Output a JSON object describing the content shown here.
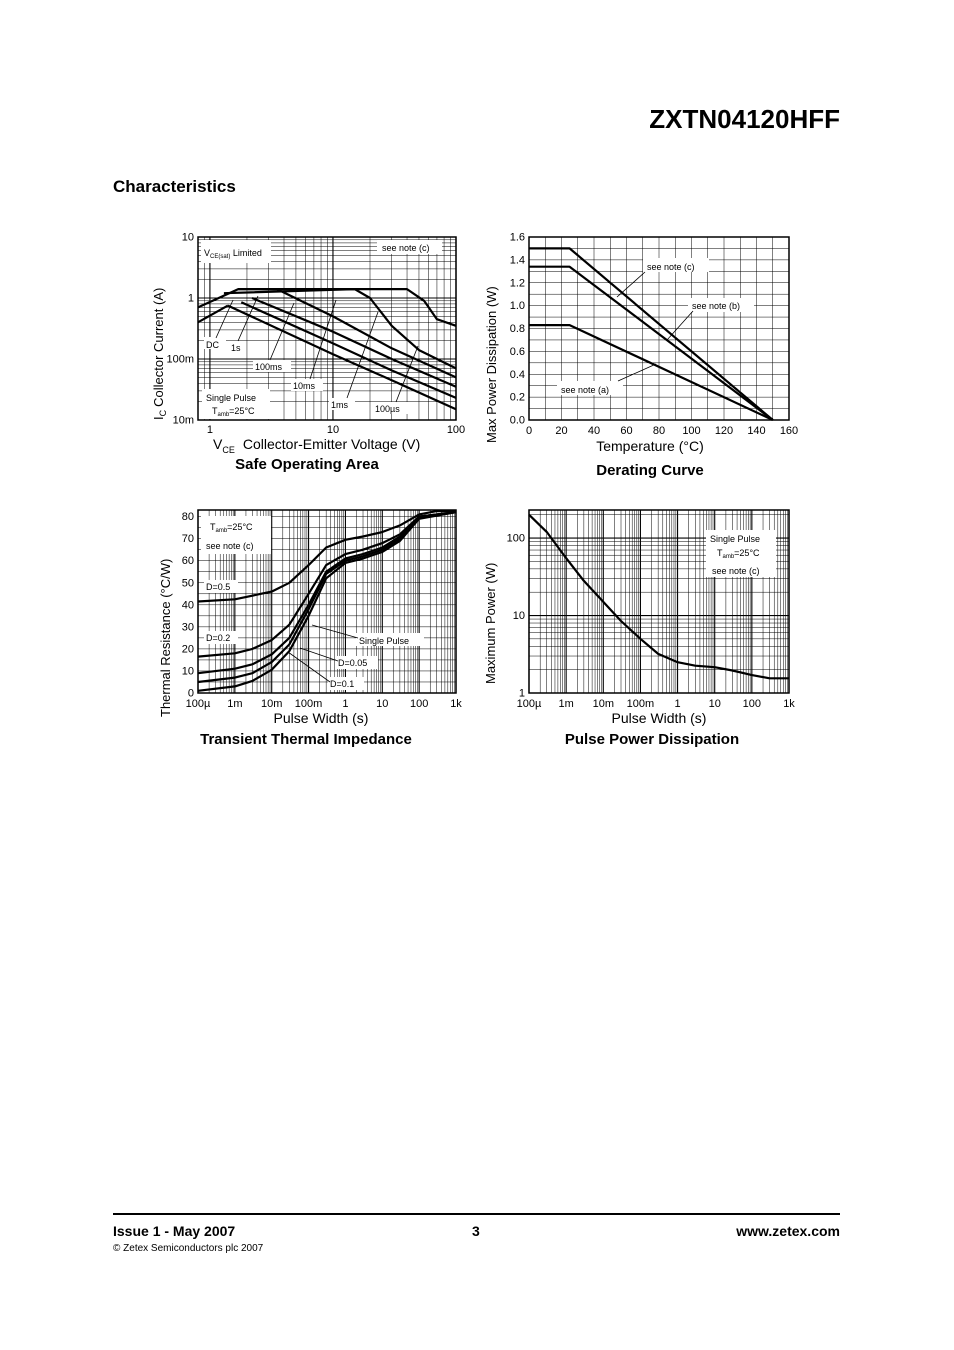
{
  "header": {
    "part_number": "ZXTN04120HFF",
    "section_title": "Characteristics"
  },
  "footer": {
    "issue": "Issue 1 - May 2007",
    "page": "3",
    "website": "www.zetex.com",
    "copyright": "© Zetex Semiconductors plc 2007"
  },
  "chart_data": [
    {
      "id": "soa",
      "type": "line",
      "caption": "Safe Operating Area",
      "x_scale": "log",
      "y_scale": "log",
      "xlim": [
        0.8,
        100
      ],
      "ylim": [
        0.01,
        10
      ],
      "xlabel_main": "V",
      "xlabel_sub": "CE",
      "xlabel_rest": "Collector-Emitter Voltage (V)",
      "ylabel_main": "I",
      "ylabel_sub": "C",
      "ylabel_rest": "Collector Current (A)",
      "x_ticks": [
        {
          "v": 1,
          "label": "1"
        },
        {
          "v": 10,
          "label": "10"
        },
        {
          "v": 100,
          "label": "100"
        }
      ],
      "y_ticks": [
        {
          "v": 10,
          "label": "10"
        },
        {
          "v": 1,
          "label": "1"
        },
        {
          "v": 0.1,
          "label": "100m"
        },
        {
          "v": 0.01,
          "label": "10m"
        }
      ],
      "series": [
        {
          "points": [
            [
              0.8,
              0.7
            ],
            [
              1.7,
              1.4
            ],
            [
              3.5,
              1.4
            ],
            [
              6,
              1.4
            ],
            [
              25,
              1.4
            ],
            [
              40,
              1.4
            ],
            [
              55,
              0.9
            ],
            [
              70,
              0.45
            ],
            [
              100,
              0.35
            ]
          ]
        },
        {
          "points": [
            [
              1.3,
              1.2
            ],
            [
              15,
              1.4
            ],
            [
              20,
              1.0
            ],
            [
              30,
              0.35
            ],
            [
              50,
              0.14
            ],
            [
              100,
              0.07
            ]
          ]
        },
        {
          "points": [
            [
              1.7,
              1.4
            ],
            [
              3.5,
              1.4
            ],
            [
              10,
              0.5
            ],
            [
              30,
              0.15
            ],
            [
              100,
              0.05
            ]
          ]
        },
        {
          "points": [
            [
              2.2,
              1.0
            ],
            [
              10,
              0.28
            ],
            [
              30,
              0.1
            ],
            [
              100,
              0.035
            ]
          ]
        },
        {
          "points": [
            [
              1.8,
              0.85
            ],
            [
              10,
              0.18
            ],
            [
              30,
              0.065
            ],
            [
              100,
              0.023
            ]
          ]
        },
        {
          "points": [
            [
              1.4,
              0.75
            ],
            [
              10,
              0.12
            ],
            [
              30,
              0.045
            ],
            [
              100,
              0.015
            ]
          ]
        },
        {
          "points": [
            [
              0.8,
              0.4
            ],
            [
              1.4,
              0.75
            ]
          ]
        }
      ],
      "labels": {
        "vce_sat_main": "V",
        "vce_sat_sub": "CE(sat)",
        "vce_sat_rest": " Limited",
        "note": "see note (c)",
        "dc": "DC",
        "s1": "1s",
        "ms100": "100ms",
        "ms10": "10ms",
        "ms1": "1ms",
        "us100": "100µs",
        "single_pulse": "Single Pulse",
        "tamb_main": "T",
        "tamb_sub": "amb",
        "tamb_rest": "=25°C"
      }
    },
    {
      "id": "derating",
      "type": "line",
      "caption": "Derating Curve",
      "xlim": [
        0,
        160
      ],
      "ylim": [
        0,
        1.6
      ],
      "xlabel": "Temperature (°C)",
      "ylabel": "Max Power Dissipation (W)",
      "x_ticks": [
        0,
        20,
        40,
        60,
        80,
        100,
        120,
        140,
        160
      ],
      "y_ticks": [
        {
          "v": 0,
          "label": "0.0"
        },
        {
          "v": 0.2,
          "label": "0.2"
        },
        {
          "v": 0.4,
          "label": "0.4"
        },
        {
          "v": 0.6,
          "label": "0.6"
        },
        {
          "v": 0.8,
          "label": "0.8"
        },
        {
          "v": 1.0,
          "label": "1.0"
        },
        {
          "v": 1.2,
          "label": "1.2"
        },
        {
          "v": 1.4,
          "label": "1.4"
        },
        {
          "v": 1.6,
          "label": "1.6"
        }
      ],
      "series": [
        {
          "name": "see note (c)",
          "points": [
            [
              0,
              1.5
            ],
            [
              25,
              1.5
            ],
            [
              150,
              0
            ]
          ]
        },
        {
          "name": "see note (b)",
          "points": [
            [
              0,
              1.34
            ],
            [
              25,
              1.34
            ],
            [
              150,
              0
            ]
          ]
        },
        {
          "name": "see note (a)",
          "points": [
            [
              0,
              0.83
            ],
            [
              25,
              0.83
            ],
            [
              150,
              0
            ]
          ]
        }
      ]
    },
    {
      "id": "thermal",
      "type": "line",
      "caption": "Transient Thermal Impedance",
      "x_scale": "log",
      "xlim": [
        0.0001,
        1000
      ],
      "ylim": [
        0,
        83
      ],
      "xlabel": "Pulse Width (s)",
      "ylabel": "Thermal Resistance (°C/W)",
      "x_ticks": [
        {
          "v": 0.0001,
          "label": "100µ"
        },
        {
          "v": 0.001,
          "label": "1m"
        },
        {
          "v": 0.01,
          "label": "10m"
        },
        {
          "v": 0.1,
          "label": "100m"
        },
        {
          "v": 1,
          "label": "1"
        },
        {
          "v": 10,
          "label": "10"
        },
        {
          "v": 100,
          "label": "100"
        },
        {
          "v": 1000,
          "label": "1k"
        }
      ],
      "y_ticks": [
        0,
        10,
        20,
        30,
        40,
        50,
        60,
        70,
        80
      ],
      "series": [
        {
          "name": "D=0.5",
          "points": [
            [
              0.0001,
              41.5
            ],
            [
              0.001,
              42.5
            ],
            [
              0.01,
              46
            ],
            [
              0.03,
              50
            ],
            [
              0.1,
              58
            ],
            [
              0.3,
              66
            ],
            [
              1,
              69.5
            ],
            [
              3,
              71
            ],
            [
              10,
              73
            ],
            [
              30,
              76
            ],
            [
              100,
              81
            ],
            [
              300,
              82.5
            ],
            [
              1000,
              82.5
            ]
          ]
        },
        {
          "name": "D=0.2",
          "points": [
            [
              0.0001,
              16.5
            ],
            [
              0.001,
              18
            ],
            [
              0.003,
              20
            ],
            [
              0.01,
              24
            ],
            [
              0.03,
              31
            ],
            [
              0.1,
              45
            ],
            [
              0.3,
              58
            ],
            [
              1,
              63
            ],
            [
              3,
              65
            ],
            [
              10,
              68
            ],
            [
              30,
              72
            ],
            [
              100,
              80
            ],
            [
              1000,
              82
            ]
          ]
        },
        {
          "name": "D=0.1",
          "points": [
            [
              0.0001,
              9
            ],
            [
              0.001,
              11
            ],
            [
              0.003,
              13
            ],
            [
              0.01,
              17.5
            ],
            [
              0.03,
              25
            ],
            [
              0.1,
              40
            ],
            [
              0.3,
              55
            ],
            [
              1,
              61
            ],
            [
              3,
              63
            ],
            [
              10,
              66
            ],
            [
              30,
              71
            ],
            [
              100,
              80
            ],
            [
              1000,
              82
            ]
          ]
        },
        {
          "name": "D=0.05",
          "points": [
            [
              0.0001,
              5
            ],
            [
              0.001,
              7
            ],
            [
              0.003,
              9
            ],
            [
              0.01,
              14
            ],
            [
              0.03,
              22
            ],
            [
              0.1,
              38
            ],
            [
              0.3,
              54
            ],
            [
              1,
              60
            ],
            [
              3,
              62
            ],
            [
              10,
              65
            ],
            [
              30,
              70
            ],
            [
              100,
              80
            ],
            [
              1000,
              82
            ]
          ]
        },
        {
          "name": "Single Pulse",
          "points": [
            [
              0.0001,
              1
            ],
            [
              0.001,
              3
            ],
            [
              0.003,
              5.5
            ],
            [
              0.01,
              10.5
            ],
            [
              0.03,
              19
            ],
            [
              0.1,
              35
            ],
            [
              0.3,
              52
            ],
            [
              1,
              59
            ],
            [
              3,
              61
            ],
            [
              10,
              64
            ],
            [
              30,
              69
            ],
            [
              100,
              79
            ],
            [
              1000,
              82
            ]
          ]
        }
      ],
      "labels": {
        "tamb_main": "T",
        "tamb_sub": "amb",
        "tamb_rest": "=25°C",
        "note": "see note (c)"
      }
    },
    {
      "id": "pulse_power",
      "type": "line",
      "caption": "Pulse Power Dissipation",
      "x_scale": "log",
      "y_scale": "log",
      "xlim": [
        0.0001,
        1000
      ],
      "ylim": [
        1,
        230
      ],
      "xlabel": "Pulse Width (s)",
      "ylabel": "Maximum Power (W)",
      "x_ticks": [
        {
          "v": 0.0001,
          "label": "100µ"
        },
        {
          "v": 0.001,
          "label": "1m"
        },
        {
          "v": 0.01,
          "label": "10m"
        },
        {
          "v": 0.1,
          "label": "100m"
        },
        {
          "v": 1,
          "label": "1"
        },
        {
          "v": 10,
          "label": "10"
        },
        {
          "v": 100,
          "label": "100"
        },
        {
          "v": 1000,
          "label": "1k"
        }
      ],
      "y_ticks": [
        {
          "v": 100,
          "label": "100"
        },
        {
          "v": 10,
          "label": "10"
        },
        {
          "v": 1,
          "label": "1"
        }
      ],
      "series": [
        {
          "name": "Single Pulse",
          "points": [
            [
              0.0001,
              200
            ],
            [
              0.0003,
              120
            ],
            [
              0.001,
              55
            ],
            [
              0.003,
              28
            ],
            [
              0.01,
              15
            ],
            [
              0.03,
              8.5
            ],
            [
              0.1,
              5
            ],
            [
              0.3,
              3.2
            ],
            [
              1,
              2.5
            ],
            [
              3,
              2.25
            ],
            [
              10,
              2.15
            ],
            [
              30,
              1.95
            ],
            [
              100,
              1.7
            ],
            [
              300,
              1.55
            ],
            [
              1000,
              1.55
            ]
          ]
        }
      ],
      "labels": {
        "single_pulse": "Single Pulse",
        "tamb_main": "T",
        "tamb_sub": "amb",
        "tamb_rest": "=25°C",
        "note": "see note (c)"
      }
    }
  ]
}
